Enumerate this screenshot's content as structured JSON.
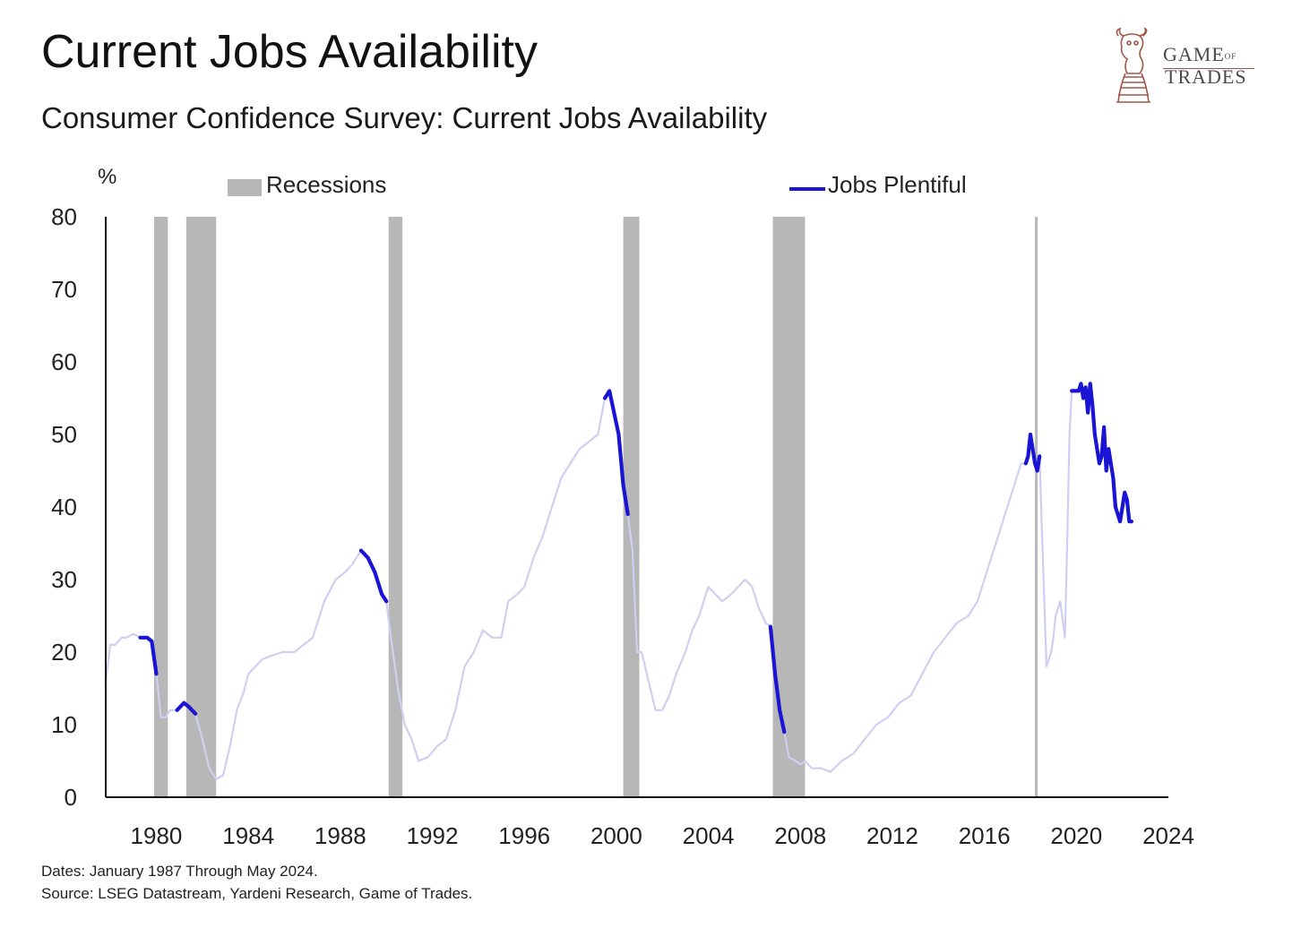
{
  "title": "Current Jobs Availability",
  "subtitle": "Consumer Confidence Survey: Current Jobs Availability",
  "logo": {
    "text_line1": "GAME",
    "text_of": "OF",
    "text_line2": "TRADES",
    "icon": "bull-chess-knight-icon",
    "color": "#a0574a"
  },
  "footer": {
    "dates": "Dates: January 1987 Through May 2024.",
    "source": "Source: LSEG Datastream, Yardeni Research, Game of Trades."
  },
  "chart_data": {
    "type": "line",
    "ylabel": "%",
    "ylim": [
      0,
      80
    ],
    "yticks": [
      0,
      10,
      20,
      30,
      40,
      50,
      60,
      70,
      80
    ],
    "xlim": [
      1977.8,
      2024
    ],
    "xticks": [
      1980,
      1984,
      1988,
      1992,
      1996,
      2000,
      2004,
      2008,
      2012,
      2016,
      2020,
      2024
    ],
    "grid": false,
    "legend": {
      "recessions_label": "Recessions",
      "series_label": "Jobs Plentiful",
      "placement": "top"
    },
    "colors": {
      "recession": "#b7b7b7",
      "line_light": "#cfcff2",
      "line_dark": "#1a14d4",
      "axis": "#111111"
    },
    "recessions": [
      [
        1979.9,
        1980.5
      ],
      [
        1981.3,
        1982.6
      ],
      [
        1990.1,
        1990.7
      ],
      [
        2000.3,
        2001.0
      ],
      [
        2006.8,
        2008.2
      ],
      [
        2018.2,
        2018.3
      ]
    ],
    "series": [
      {
        "name": "Jobs Plentiful",
        "x": [
          1977.8,
          1978.0,
          1978.2,
          1978.5,
          1978.7,
          1979.0,
          1979.3,
          1979.6,
          1979.8,
          1980.0,
          1980.2,
          1980.4,
          1980.6,
          1980.9,
          1981.2,
          1981.4,
          1981.7,
          1982.0,
          1982.3,
          1982.6,
          1982.9,
          1983.2,
          1983.5,
          1983.8,
          1984.0,
          1984.3,
          1984.6,
          1985.0,
          1985.5,
          1986.0,
          1986.4,
          1986.8,
          1987.3,
          1987.8,
          1988.2,
          1988.5,
          1988.9,
          1989.2,
          1989.5,
          1989.8,
          1990.0,
          1990.2,
          1990.5,
          1990.8,
          1991.1,
          1991.4,
          1991.8,
          1992.2,
          1992.6,
          1993.0,
          1993.4,
          1993.8,
          1994.2,
          1994.6,
          1995.0,
          1995.3,
          1995.7,
          1996.0,
          1996.4,
          1996.8,
          1997.2,
          1997.6,
          1998.0,
          1998.4,
          1998.8,
          1999.2,
          1999.5,
          1999.7,
          1999.9,
          2000.1,
          2000.3,
          2000.5,
          2000.7,
          2000.9,
          2001.1,
          2001.4,
          2001.7,
          2002.0,
          2002.3,
          2002.6,
          2003.0,
          2003.3,
          2003.6,
          2004.0,
          2004.3,
          2004.6,
          2005.0,
          2005.3,
          2005.6,
          2005.9,
          2006.2,
          2006.5,
          2006.7,
          2006.9,
          2007.1,
          2007.3,
          2007.5,
          2007.8,
          2008.0,
          2008.2,
          2008.5,
          2008.9,
          2009.3,
          2009.8,
          2010.3,
          2010.8,
          2011.3,
          2011.8,
          2012.3,
          2012.8,
          2013.3,
          2013.8,
          2014.3,
          2014.8,
          2015.3,
          2015.7,
          2016.0,
          2016.4,
          2016.8,
          2017.2,
          2017.4,
          2017.6,
          2017.8,
          2017.9,
          2018.0,
          2018.2,
          2018.3,
          2018.4,
          2018.5,
          2018.7,
          2018.9,
          2019.0,
          2019.1,
          2019.3,
          2019.5,
          2019.6,
          2019.7,
          2019.8,
          2019.9,
          2020.0,
          2020.1,
          2020.2,
          2020.3,
          2020.4,
          2020.5,
          2020.6,
          2020.7,
          2020.8,
          2020.9,
          2021.0,
          2021.1,
          2021.2,
          2021.3,
          2021.4,
          2021.5,
          2021.6,
          2021.7,
          2021.8,
          2021.9,
          2022.0,
          2022.1,
          2022.2,
          2022.3,
          2022.4
        ],
        "y": [
          16,
          21,
          21,
          22,
          22,
          22.5,
          22,
          22,
          21.5,
          17,
          11,
          11,
          12,
          12,
          13,
          12.5,
          11.5,
          8,
          4,
          2.5,
          3,
          7,
          12,
          14.5,
          17,
          18,
          19,
          19.5,
          20,
          20,
          21,
          22,
          27,
          30,
          31,
          32,
          34,
          33,
          31,
          28,
          27,
          22,
          15,
          10,
          8,
          5,
          5.5,
          7,
          8,
          12,
          18,
          20,
          23,
          22,
          22,
          27,
          28,
          29,
          33,
          36,
          40,
          44,
          46,
          48,
          49,
          50,
          55,
          56,
          53,
          50,
          43,
          39,
          34,
          20,
          20,
          16,
          12,
          12,
          14,
          17,
          20,
          23,
          25,
          29,
          28,
          27,
          28,
          29,
          30,
          29,
          26,
          24,
          23.5,
          17,
          12,
          9,
          5.5,
          5,
          4.5,
          5,
          4,
          4,
          3.5,
          5,
          6,
          8,
          10,
          11,
          13,
          14,
          17,
          20,
          22,
          24,
          25,
          27,
          30,
          34,
          38,
          42,
          44,
          46,
          46,
          47,
          50,
          46,
          45,
          47,
          37,
          18,
          20,
          22,
          25,
          27,
          22,
          35,
          50,
          56,
          56,
          56,
          56,
          57,
          55,
          56.5,
          53,
          57,
          54,
          50,
          48,
          46,
          47,
          51,
          45,
          48,
          46,
          44,
          40,
          39,
          38,
          40,
          42,
          41,
          38,
          38
        ]
      }
    ],
    "highlight_ranges": [
      [
        1979.2,
        1980.0
      ],
      [
        1980.9,
        1981.9
      ],
      [
        1988.6,
        1990.1
      ],
      [
        1999.5,
        2000.6
      ],
      [
        2006.6,
        2007.3
      ],
      [
        2017.8,
        2018.4
      ],
      [
        2019.8,
        2022.4
      ]
    ]
  }
}
